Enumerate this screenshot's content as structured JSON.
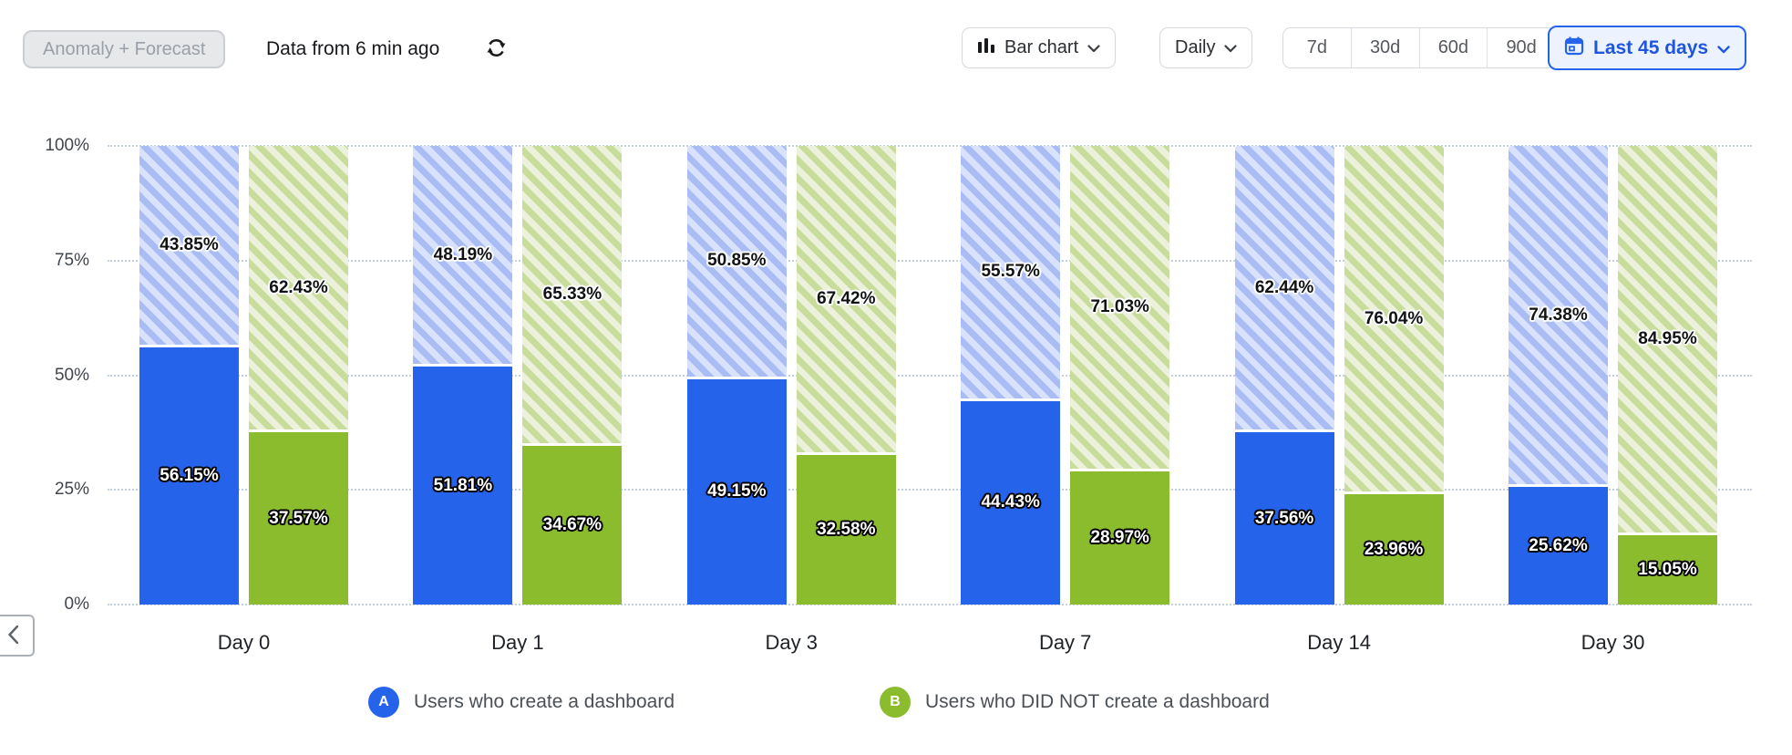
{
  "toolbar": {
    "anomaly_forecast_label": "Anomaly + Forecast",
    "data_freshness": "Data from 6 min ago",
    "refresh_icon": "refresh-sync-icon",
    "chart_type": {
      "icon": "bar-chart-icon",
      "label": "Bar chart"
    },
    "granularity": {
      "label": "Daily"
    },
    "range_presets": [
      "7d",
      "30d",
      "60d",
      "90d"
    ],
    "date_range": {
      "icon": "calendar-icon",
      "label": "Last 45 days"
    }
  },
  "colors": {
    "series_a_solid": "#2563eb",
    "series_a_hatch_bg": "#d9e2fc",
    "series_a_hatch_stripe": "#a9bdf4",
    "series_b_solid": "#8bbc2d",
    "series_b_hatch_bg": "#ebf1da",
    "series_b_hatch_stripe": "#c8dc9c",
    "accent_blue": "#2563eb",
    "gridline": "#c3d0e1"
  },
  "chart_data": {
    "type": "bar",
    "stacked": true,
    "unit": "%",
    "grid": "horizontal-dotted",
    "ylim": [
      0,
      100
    ],
    "y_ticks": [
      "100%",
      "75%",
      "50%",
      "25%",
      "0%"
    ],
    "categories": [
      "Day 0",
      "Day 1",
      "Day 3",
      "Day 7",
      "Day 14",
      "Day 30"
    ],
    "series": [
      {
        "letter": "A",
        "name": "Users who create a dashboard",
        "color": "#2563eb",
        "hatch_bg": "#d9e2fc",
        "hatch_stripe": "#a9bdf4",
        "solid_values": [
          56.15,
          51.81,
          49.15,
          44.43,
          37.56,
          25.62
        ],
        "hatched_values": [
          43.85,
          48.19,
          50.85,
          55.57,
          62.44,
          74.38
        ]
      },
      {
        "letter": "B",
        "name": "Users who DID NOT create a dashboard",
        "color": "#8bbc2d",
        "hatch_bg": "#ebf1da",
        "hatch_stripe": "#c8dc9c",
        "solid_values": [
          37.57,
          34.67,
          32.58,
          28.97,
          23.96,
          15.05
        ],
        "hatched_values": [
          62.43,
          65.33,
          67.42,
          71.03,
          76.04,
          84.95
        ]
      }
    ]
  },
  "legend": [
    {
      "letter": "A",
      "color": "#2563eb",
      "label": "Users who create a dashboard"
    },
    {
      "letter": "B",
      "color": "#8bbc2d",
      "label": "Users who DID NOT create a dashboard"
    }
  ],
  "nav": {
    "scroll_left_icon": "chevron-left-icon"
  }
}
